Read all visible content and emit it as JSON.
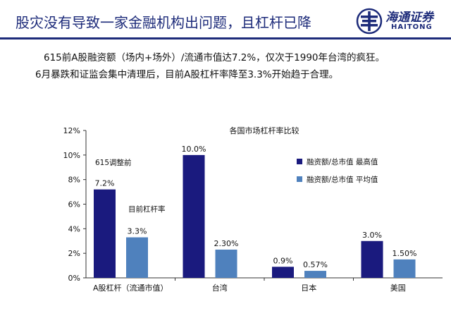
{
  "header": {
    "title": "股灾没有导致一家金融机构出问题，且杠杆已降",
    "logo_cn": "海通证券",
    "logo_en": "HAITONG",
    "accent": "#1d2b7a"
  },
  "paragraphs": [
    "615前A股融资额（场内+场外）/流通市值达7.2%，仅次于1990年台湾的疯狂。",
    "6月暴跌和证监会集中清理后，目前A股杠杆率降至3.3%开始趋于合理。"
  ],
  "chart_data": {
    "type": "bar",
    "title": "各国市场杠杆率比较",
    "categories": [
      "A股杠杆（流通市值）",
      "台湾",
      "日本",
      "美国"
    ],
    "series": [
      {
        "name": "融资额/总市值 最高值",
        "color": "#1a1a7e",
        "values": [
          7.2,
          10.0,
          0.9,
          3.0
        ],
        "labels": [
          "7.2%",
          "10.0%",
          "0.9%",
          "3.0%"
        ]
      },
      {
        "name": "融资额/总市值 平均值",
        "color": "#4f81bd",
        "values": [
          3.3,
          2.3,
          0.57,
          1.5
        ],
        "labels": [
          "3.3%",
          "2.30%",
          "0.57%",
          "1.50%"
        ]
      }
    ],
    "ylim": [
      0,
      12
    ],
    "yticks": [
      "0%",
      "2%",
      "4%",
      "6%",
      "8%",
      "10%",
      "12%"
    ],
    "annotations": [
      "615调整前",
      "目前杠杆率"
    ],
    "legend_position": "right",
    "grid": false
  }
}
